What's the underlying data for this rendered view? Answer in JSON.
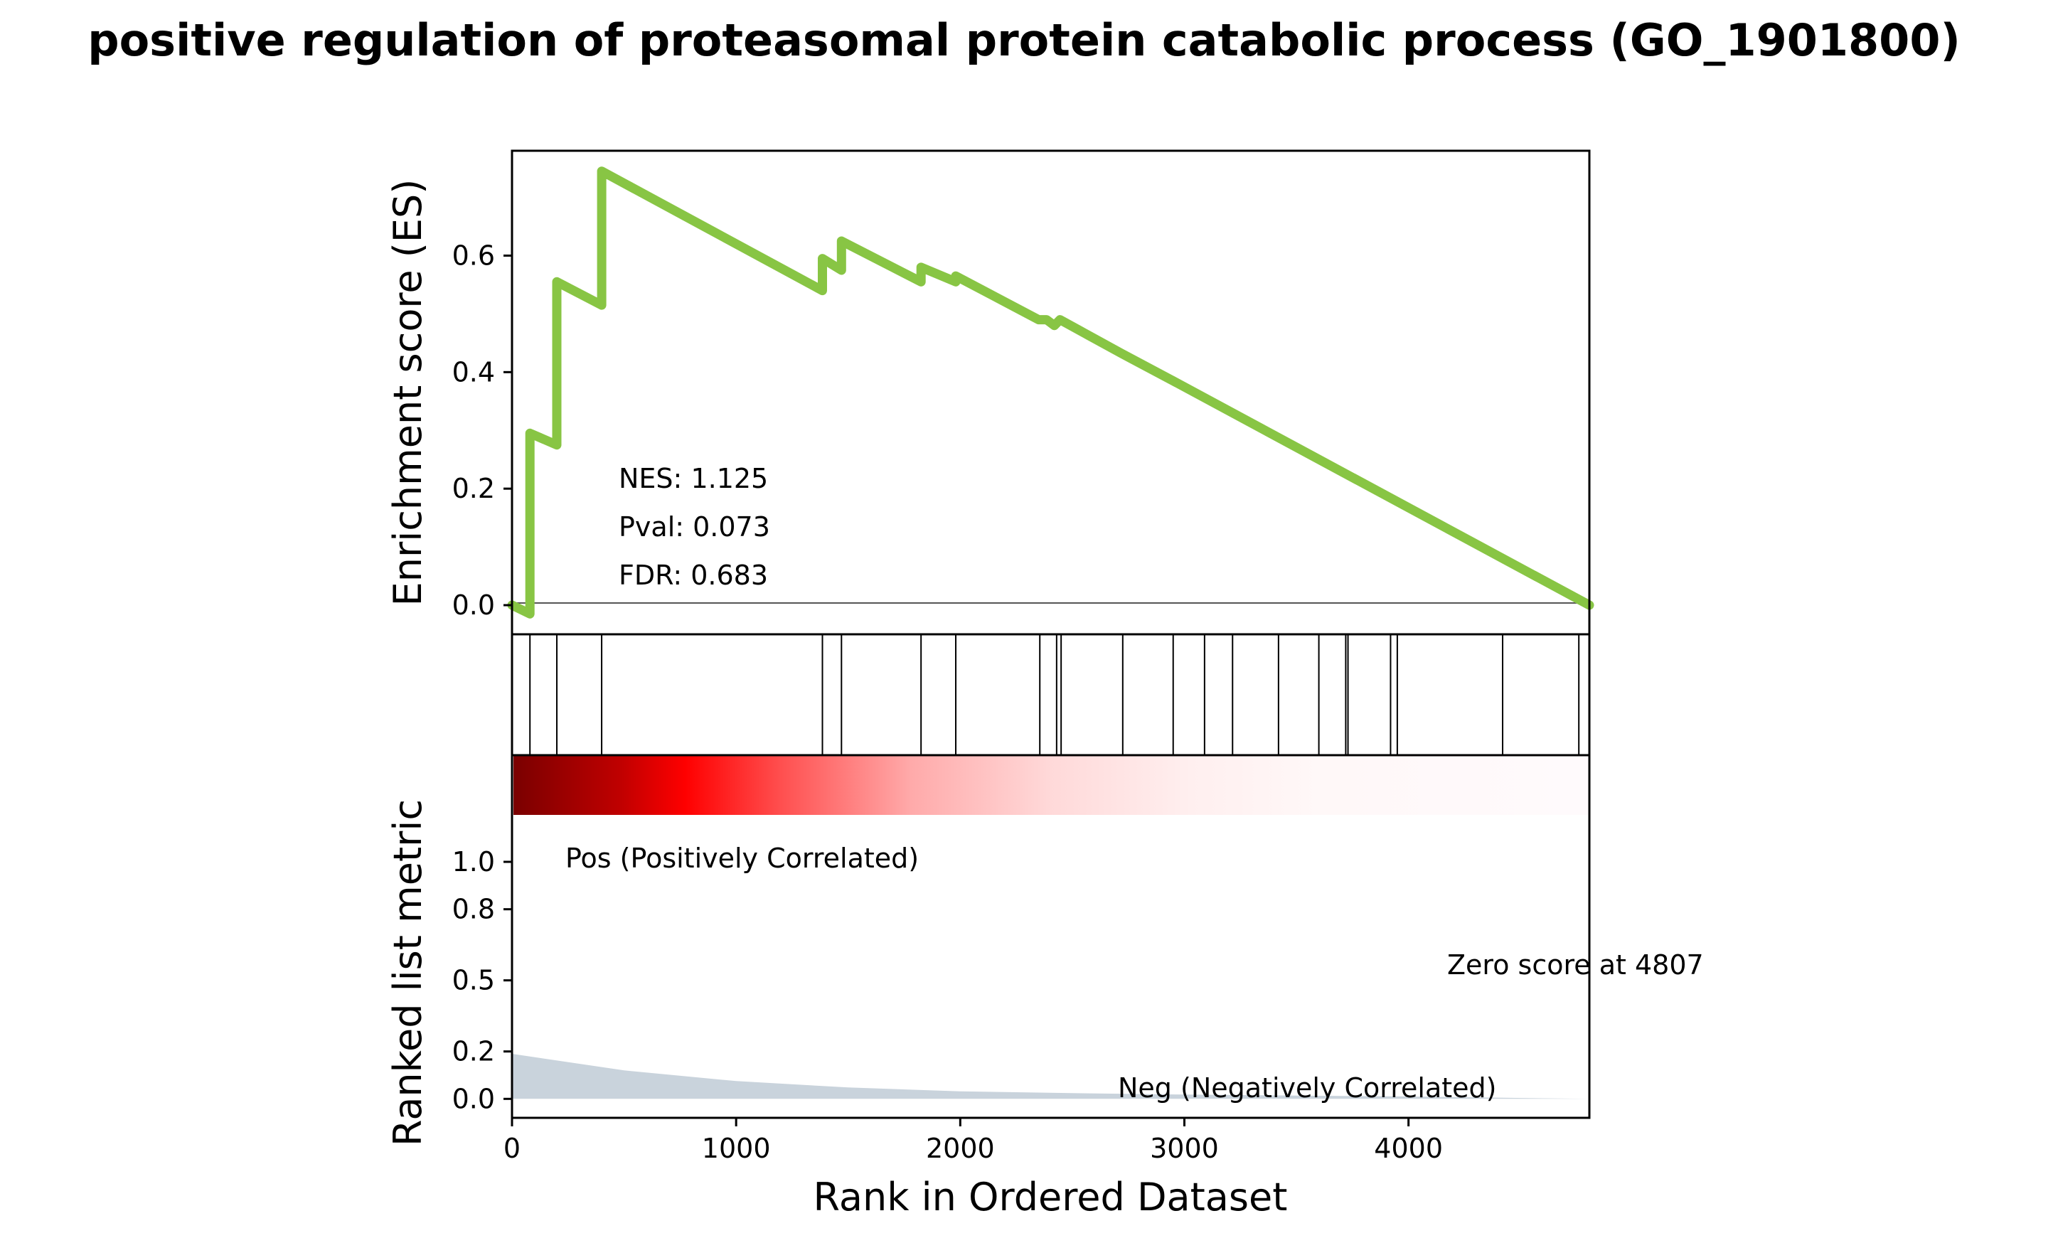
{
  "chart_data": {
    "type": "line",
    "title": "positive regulation of proteasomal protein catabolic process (GO_1901800)",
    "xlabel": "Rank in Ordered Dataset",
    "x_ticks": [
      "0",
      "1000",
      "2000",
      "3000",
      "4000"
    ],
    "x_tick_values": [
      0,
      1000,
      2000,
      3000,
      4000
    ],
    "xlim": [
      0,
      4807
    ],
    "es_panel": {
      "ylabel": "Enrichment score (ES)",
      "y_ticks": [
        "0.0",
        "0.2",
        "0.4",
        "0.6"
      ],
      "y_tick_values": [
        0.0,
        0.2,
        0.4,
        0.6
      ],
      "ylim": [
        -0.05,
        0.78
      ],
      "line_color": "#88c544",
      "series": [
        {
          "x": [
            0,
            80,
            80,
            200,
            200,
            400,
            400,
            1385,
            1385,
            1470,
            1470,
            1825,
            1825,
            1980,
            1980,
            2350,
            2385,
            2420,
            2445,
            2720,
            2950,
            4807
          ],
          "y": [
            0.0,
            -0.015,
            0.295,
            0.275,
            0.555,
            0.515,
            0.745,
            0.54,
            0.595,
            0.575,
            0.625,
            0.555,
            0.58,
            0.555,
            0.565,
            0.49,
            0.49,
            0.48,
            0.49,
            0.432,
            0.385,
            0.0
          ]
        }
      ],
      "stats": {
        "nes": "NES: 1.125",
        "pval": "Pval: 0.073",
        "fdr": "FDR: 0.683"
      }
    },
    "hits_panel": {
      "hit_positions": [
        80,
        200,
        400,
        1385,
        1470,
        1825,
        1980,
        2355,
        2430,
        2450,
        2725,
        2950,
        3090,
        3215,
        3420,
        3600,
        3720,
        3730,
        3920,
        3950,
        4420,
        4760
      ]
    },
    "rank_panel": {
      "ylabel": "Ranked list metric",
      "y_ticks": [
        "0.0",
        "0.2",
        "0.5",
        "0.8",
        "1.0"
      ],
      "y_tick_values": [
        0.0,
        0.2,
        0.5,
        0.8,
        1.0
      ],
      "ylim": [
        -0.08,
        1.45
      ],
      "fill_color": "#c9d3dc",
      "pos_label": "Pos (Positively Correlated)",
      "neg_label": "Neg (Negatively Correlated)",
      "zero_label": "Zero score at 4807",
      "metric_x": [
        0,
        500,
        1000,
        1500,
        2000,
        2500,
        3000,
        3500,
        4000,
        4807
      ],
      "metric_y": [
        0.19,
        0.12,
        0.075,
        0.048,
        0.032,
        0.024,
        0.018,
        0.014,
        0.01,
        0.0
      ]
    }
  }
}
